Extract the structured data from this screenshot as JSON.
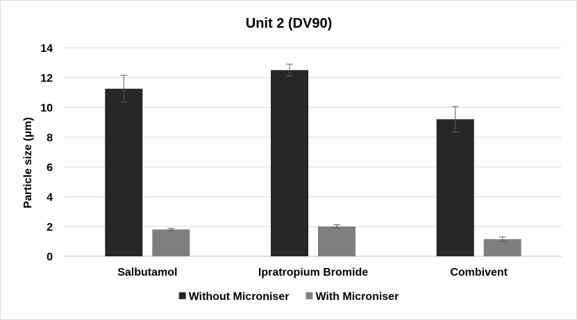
{
  "chart_data": {
    "type": "bar",
    "title": "Unit 2 (DV90)",
    "xlabel": "",
    "ylabel": "Particle size (μm)",
    "ylim": [
      0,
      14
    ],
    "yticks": [
      0,
      2,
      4,
      6,
      8,
      10,
      12,
      14
    ],
    "grid": true,
    "legend_position": "bottom",
    "categories": [
      "Salbutamol",
      "Ipratropium Bromide",
      "Combivent"
    ],
    "series": [
      {
        "name": "Without Microniser",
        "color": "#262626",
        "values": [
          11.25,
          12.5,
          9.2
        ],
        "error": [
          0.9,
          0.4,
          0.85
        ]
      },
      {
        "name": "With Microniser",
        "color": "#7f7f7f",
        "values": [
          1.8,
          2.0,
          1.15
        ],
        "error": [
          0.07,
          0.12,
          0.15
        ]
      }
    ]
  }
}
